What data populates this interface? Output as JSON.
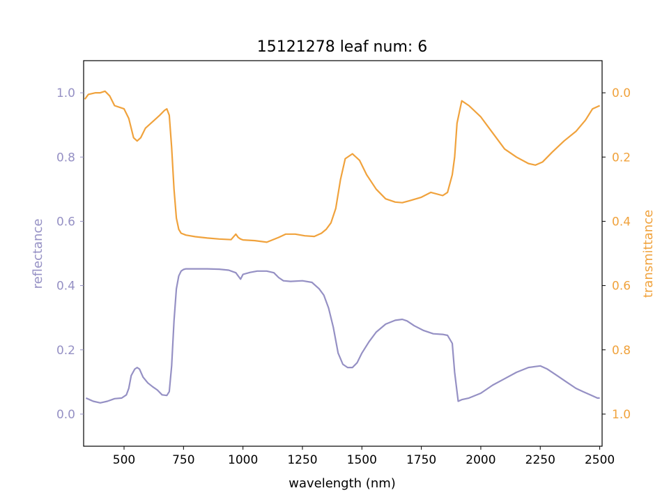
{
  "chart_data": {
    "type": "line",
    "title": "15121278 leaf num: 6",
    "xlabel": "wavelength (nm)",
    "ylabel_left": "reflectance",
    "ylabel_right": "transmittance",
    "xlim": [
      330,
      2510
    ],
    "ylim_left": [
      -0.1,
      1.1
    ],
    "ylim_right": [
      1.1,
      -0.1
    ],
    "right_axis_inverted": true,
    "x_ticks": [
      500,
      750,
      1000,
      1250,
      1500,
      1750,
      2000,
      2250,
      2500
    ],
    "y_left_ticks": [
      0.0,
      0.2,
      0.4,
      0.6,
      0.8,
      1.0
    ],
    "y_right_ticks": [
      0.0,
      0.2,
      0.4,
      0.6,
      0.8,
      1.0
    ],
    "grid": false,
    "colors": {
      "reflectance": "#9590c4",
      "transmittance": "#f0a23c"
    },
    "series": [
      {
        "name": "reflectance",
        "axis": "left",
        "x": [
          340,
          370,
          400,
          430,
          460,
          490,
          510,
          520,
          530,
          545,
          555,
          565,
          580,
          600,
          620,
          640,
          660,
          680,
          690,
          700,
          710,
          720,
          730,
          740,
          750,
          760,
          800,
          850,
          900,
          940,
          970,
          990,
          1000,
          1030,
          1060,
          1100,
          1130,
          1150,
          1170,
          1200,
          1250,
          1290,
          1320,
          1340,
          1360,
          1380,
          1400,
          1420,
          1440,
          1460,
          1480,
          1500,
          1530,
          1560,
          1600,
          1640,
          1670,
          1690,
          1720,
          1760,
          1800,
          1840,
          1860,
          1880,
          1890,
          1900,
          1905,
          1920,
          1950,
          2000,
          2050,
          2100,
          2150,
          2200,
          2230,
          2250,
          2280,
          2320,
          2360,
          2400,
          2430,
          2460,
          2490,
          2500
        ],
        "y": [
          0.05,
          0.04,
          0.035,
          0.04,
          0.048,
          0.05,
          0.06,
          0.08,
          0.12,
          0.14,
          0.145,
          0.14,
          0.115,
          0.097,
          0.085,
          0.075,
          0.06,
          0.058,
          0.07,
          0.15,
          0.29,
          0.39,
          0.43,
          0.445,
          0.45,
          0.452,
          0.452,
          0.452,
          0.451,
          0.448,
          0.44,
          0.42,
          0.435,
          0.441,
          0.445,
          0.445,
          0.44,
          0.425,
          0.415,
          0.413,
          0.415,
          0.41,
          0.39,
          0.37,
          0.33,
          0.27,
          0.19,
          0.155,
          0.145,
          0.145,
          0.16,
          0.19,
          0.225,
          0.255,
          0.28,
          0.292,
          0.295,
          0.29,
          0.275,
          0.26,
          0.25,
          0.248,
          0.245,
          0.22,
          0.13,
          0.07,
          0.04,
          0.045,
          0.05,
          0.065,
          0.09,
          0.11,
          0.13,
          0.145,
          0.148,
          0.15,
          0.14,
          0.12,
          0.1,
          0.08,
          0.07,
          0.06,
          0.05,
          0.05
        ]
      },
      {
        "name": "transmittance",
        "axis": "right",
        "x": [
          335,
          350,
          380,
          400,
          420,
          440,
          460,
          500,
          520,
          540,
          555,
          570,
          590,
          620,
          650,
          670,
          680,
          690,
          700,
          710,
          720,
          730,
          740,
          760,
          800,
          850,
          900,
          950,
          970,
          980,
          990,
          1000,
          1050,
          1100,
          1150,
          1180,
          1220,
          1260,
          1300,
          1330,
          1350,
          1370,
          1390,
          1410,
          1430,
          1460,
          1490,
          1520,
          1560,
          1600,
          1640,
          1670,
          1700,
          1750,
          1790,
          1840,
          1860,
          1880,
          1890,
          1900,
          1910,
          1920,
          1950,
          2000,
          2050,
          2100,
          2150,
          2200,
          2230,
          2260,
          2300,
          2350,
          2400,
          2440,
          2470,
          2500
        ],
        "y": [
          0.02,
          0.005,
          0.0,
          0.0,
          -0.005,
          0.01,
          0.04,
          0.05,
          0.08,
          0.14,
          0.15,
          0.14,
          0.11,
          0.09,
          0.07,
          0.055,
          0.05,
          0.07,
          0.17,
          0.3,
          0.39,
          0.425,
          0.437,
          0.443,
          0.448,
          0.452,
          0.455,
          0.457,
          0.44,
          0.45,
          0.455,
          0.458,
          0.46,
          0.465,
          0.45,
          0.44,
          0.44,
          0.445,
          0.447,
          0.437,
          0.425,
          0.405,
          0.36,
          0.27,
          0.205,
          0.19,
          0.21,
          0.255,
          0.3,
          0.33,
          0.34,
          0.342,
          0.336,
          0.325,
          0.31,
          0.32,
          0.31,
          0.255,
          0.2,
          0.095,
          0.06,
          0.025,
          0.04,
          0.075,
          0.125,
          0.175,
          0.2,
          0.22,
          0.225,
          0.215,
          0.185,
          0.15,
          0.12,
          0.085,
          0.05,
          0.04
        ]
      }
    ]
  }
}
